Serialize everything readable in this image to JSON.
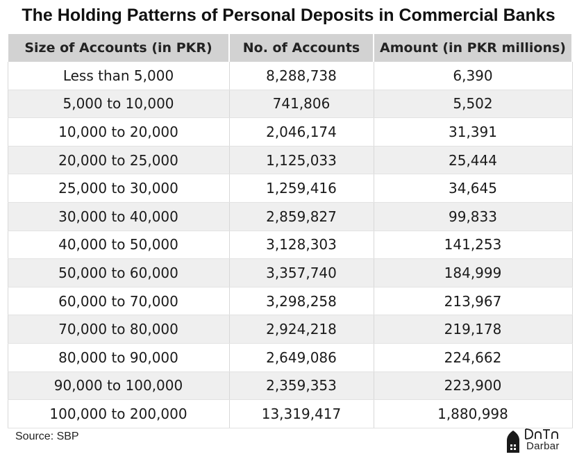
{
  "title": "The Holding Patterns of Personal Deposits in Commercial Banks",
  "source": "Source: SBP",
  "logo": {
    "text": "Darbar"
  },
  "chart_data": {
    "type": "table",
    "title": "The Holding Patterns of Personal Deposits in Commercial Banks",
    "columns": [
      "Size of Accounts (in PKR)",
      "No. of Accounts",
      "Amount (in PKR millions)"
    ],
    "rows": [
      [
        "Less than 5,000",
        "8,288,738",
        "6,390"
      ],
      [
        "5,000 to 10,000",
        "741,806",
        "5,502"
      ],
      [
        "10,000 to 20,000",
        "2,046,174",
        "31,391"
      ],
      [
        "20,000 to 25,000",
        "1,125,033",
        "25,444"
      ],
      [
        "25,000 to 30,000",
        "1,259,416",
        "34,645"
      ],
      [
        "30,000 to 40,000",
        "2,859,827",
        "99,833"
      ],
      [
        "40,000 to 50,000",
        "3,128,303",
        "141,253"
      ],
      [
        "50,000 to 60,000",
        "3,357,740",
        "184,999"
      ],
      [
        "60,000 to 70,000",
        "3,298,258",
        "213,967"
      ],
      [
        "70,000 to 80,000",
        "2,924,218",
        "219,178"
      ],
      [
        "80,000 to 90,000",
        "2,649,086",
        "224,662"
      ],
      [
        "90,000 to 100,000",
        "2,359,353",
        "223,900"
      ],
      [
        "100,000 to 200,000",
        "13,319,417",
        "1,880,998"
      ]
    ]
  }
}
